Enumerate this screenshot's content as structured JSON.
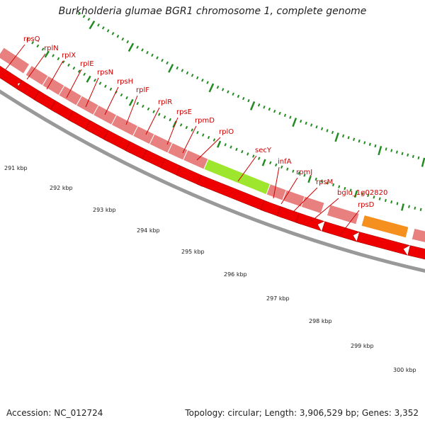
{
  "title": "Burkholderia glumae BGR1 chromosome 1, complete genome",
  "accession_line": "Accession: NC_012724",
  "topology_line": "Topology: circular; Length: 3,906,529 bp; Genes: 3,352",
  "colors": {
    "ribosomal_feature": "#e88080",
    "cds_arrow": "#ee0000",
    "secY_feature": "#9ee62e",
    "highlight_feature": "#f5901e",
    "dark_feature": "#2a2a66",
    "backbone": "#999999",
    "tick": "#228b22",
    "label_text": "#cc0000"
  },
  "gene_labels": [
    "rpsQ",
    "rplN",
    "rplX",
    "rplE",
    "rpsN",
    "rpsH",
    "rplF",
    "rplR",
    "rpsE",
    "rpmD",
    "rplO",
    "secY",
    "infA",
    "rpmJ",
    "rpsM",
    "bglu_1g02820",
    "rpsD"
  ],
  "scale_labels": [
    "291 kbp",
    "292 kbp",
    "293 kbp",
    "294 kbp",
    "295 kbp",
    "296 kbp",
    "297 kbp",
    "298 kbp",
    "299 kbp",
    "300 kbp"
  ]
}
